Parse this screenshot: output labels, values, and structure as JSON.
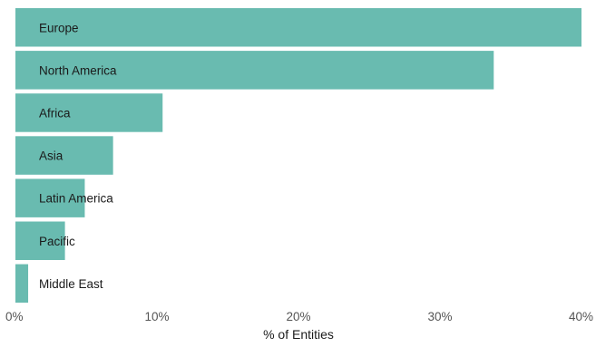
{
  "chart_data": {
    "type": "bar",
    "orientation": "horizontal",
    "categories": [
      "Europe",
      "North America",
      "Africa",
      "Asia",
      "Latin America",
      "Pacific",
      "Middle East"
    ],
    "values": [
      40.0,
      33.8,
      10.4,
      6.9,
      4.9,
      3.5,
      0.9
    ],
    "xlabel": "% of Entities",
    "ylabel": "",
    "xlim": [
      0,
      40
    ],
    "x_ticks": [
      0,
      10,
      20,
      30,
      40
    ],
    "x_tick_labels": [
      "0%",
      "10%",
      "20%",
      "30%",
      "40%"
    ],
    "grid": false,
    "legend": "none",
    "bar_color": "#69bbb0"
  }
}
